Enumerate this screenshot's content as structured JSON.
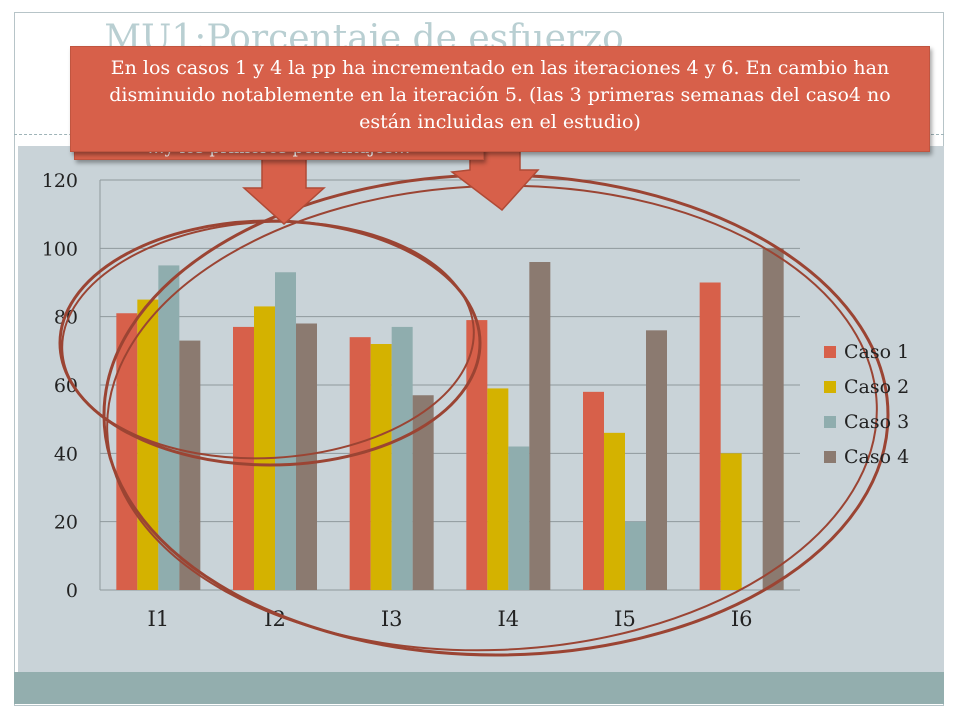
{
  "slide": {
    "title": "MU1:Porcentaje de esfuerzo"
  },
  "callouts": {
    "main": "En los casos 1 y 4 la pp ha incrementado en las iteraciones 4 y 6. En cambio han disminuido notablemente en la iteración 5. (las 3 primeras semanas del caso4 no están incluidas en el estudio)",
    "partial": "…y los primeros porcentajes…"
  },
  "colors": {
    "panel": "#c9d3d8",
    "footer": "#93aeae",
    "callout": "#d7604a",
    "annotation": "#9b4433"
  },
  "chart_data": {
    "type": "bar",
    "categories": [
      "I1",
      "I2",
      "I3",
      "I4",
      "I5",
      "I6"
    ],
    "series": [
      {
        "name": "Caso 1",
        "color": "#d7604a",
        "values": [
          81,
          77,
          74,
          79,
          58,
          90
        ]
      },
      {
        "name": "Caso 2",
        "color": "#d4b200",
        "values": [
          85,
          83,
          72,
          59,
          46,
          40
        ]
      },
      {
        "name": "Caso 3",
        "color": "#8fadae",
        "values": [
          95,
          93,
          77,
          42,
          20,
          0
        ]
      },
      {
        "name": "Caso 4",
        "color": "#8b7a70",
        "values": [
          73,
          78,
          57,
          96,
          76,
          100
        ]
      }
    ],
    "yticks": [
      "0",
      "20",
      "40",
      "60",
      "80",
      "100",
      "120"
    ],
    "ylim": [
      0,
      120
    ],
    "grid": true,
    "legend": "right"
  }
}
